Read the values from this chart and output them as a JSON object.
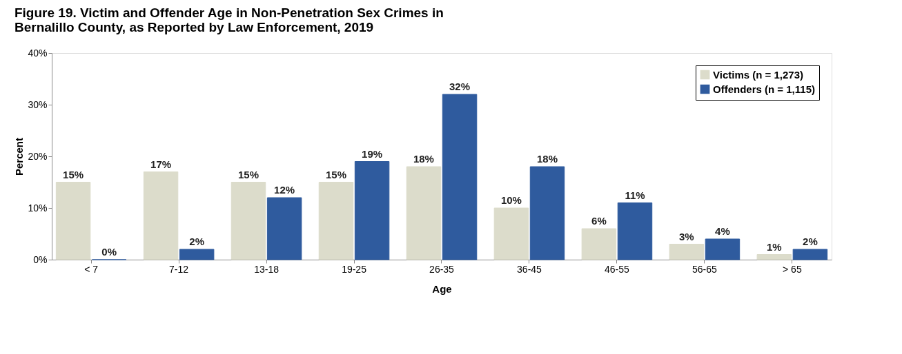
{
  "chart_data": {
    "type": "bar",
    "title": [
      "Figure 19.  Victim and Offender Age in Non-Penetration Sex Crimes in",
      "Bernalillo County, as Reported by Law Enforcement, 2019"
    ],
    "xlabel": "Age",
    "ylabel": "Percent",
    "categories": [
      "< 7",
      "7-12",
      "13-18",
      "19-25",
      "26-35",
      "36-45",
      "46-55",
      "56-65",
      "> 65"
    ],
    "series": [
      {
        "name": "Victims (n = 1,273)",
        "color": "#dcdccb",
        "values": [
          15,
          17,
          15,
          15,
          18,
          10,
          6,
          3,
          1
        ],
        "value_labels": [
          "15%",
          "17%",
          "15%",
          "15%",
          "18%",
          "10%",
          "6%",
          "3%",
          "1%"
        ]
      },
      {
        "name": "Offenders (n = 1,115)",
        "color": "#2f5b9e",
        "values": [
          0,
          2,
          12,
          19,
          32,
          18,
          11,
          4,
          2
        ],
        "value_labels": [
          "0%",
          "2%",
          "12%",
          "19%",
          "32%",
          "18%",
          "11%",
          "4%",
          "2%"
        ]
      }
    ],
    "ylim": [
      0,
      40
    ],
    "yticks": [
      {
        "value": 0,
        "label": "0%"
      },
      {
        "value": 10,
        "label": "10%"
      },
      {
        "value": 20,
        "label": "20%"
      },
      {
        "value": 30,
        "label": "30%"
      },
      {
        "value": 40,
        "label": "40%"
      }
    ],
    "grid": false,
    "legend": "top right"
  }
}
